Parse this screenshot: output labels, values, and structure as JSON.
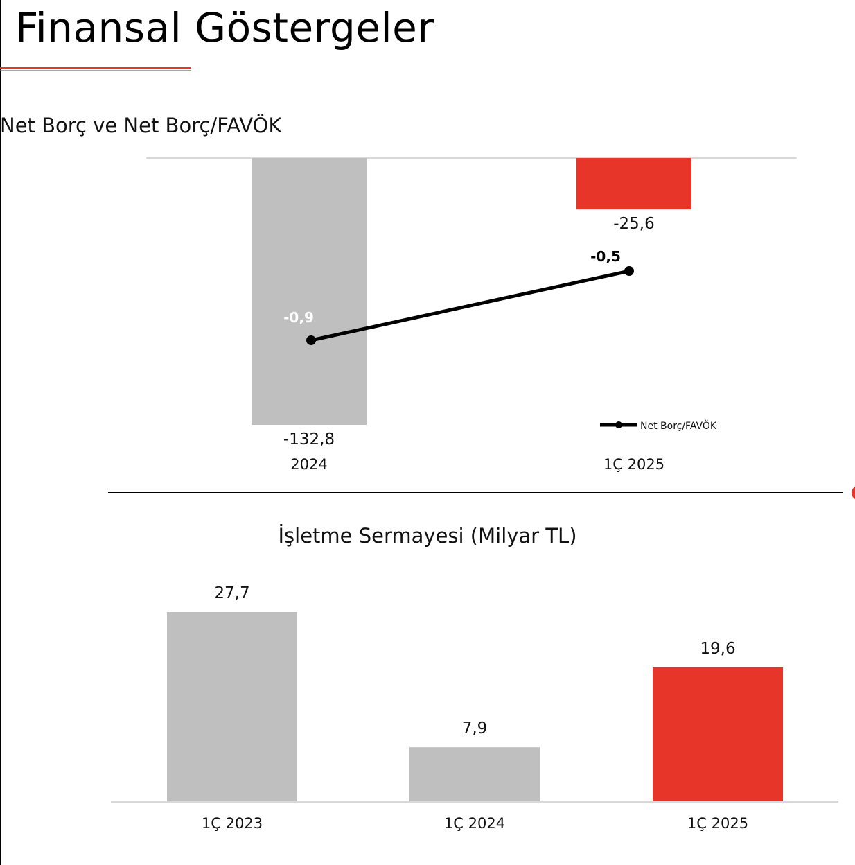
{
  "page": {
    "title": "Finansal Göstergeler"
  },
  "colors": {
    "accent": "#e8352a",
    "bar_gray": "#bfbfbf",
    "line": "#000000"
  },
  "chart_data": [
    {
      "type": "bar",
      "title": "Net Borç ve Net Borç/FAVÖK",
      "categories": [
        "2024",
        "1Ç 2025"
      ],
      "value_labels": [
        "-132,8",
        "-25,6"
      ],
      "series": [
        {
          "values": [
            -132.8,
            -25.6
          ],
          "colors": [
            "#bfbfbf",
            "#e8352a"
          ]
        },
        {
          "name": "Net Borç/FAVÖK",
          "type": "line",
          "values": [
            -0.9,
            -0.5
          ],
          "labels": [
            "-0,9",
            "-0,5"
          ]
        }
      ],
      "ylim": [
        -132.8,
        0
      ],
      "legend": "bottom-right"
    },
    {
      "type": "bar",
      "title": "İşletme Sermayesi (Milyar TL)",
      "categories": [
        "1Ç 2023",
        "1Ç 2024",
        "1Ç 2025"
      ],
      "values": [
        27.7,
        7.9,
        19.6
      ],
      "value_labels": [
        "27,7",
        "7,9",
        "19,6"
      ],
      "colors": [
        "#bfbfbf",
        "#bfbfbf",
        "#e8352a"
      ],
      "ylim": [
        0,
        27.7
      ]
    }
  ]
}
